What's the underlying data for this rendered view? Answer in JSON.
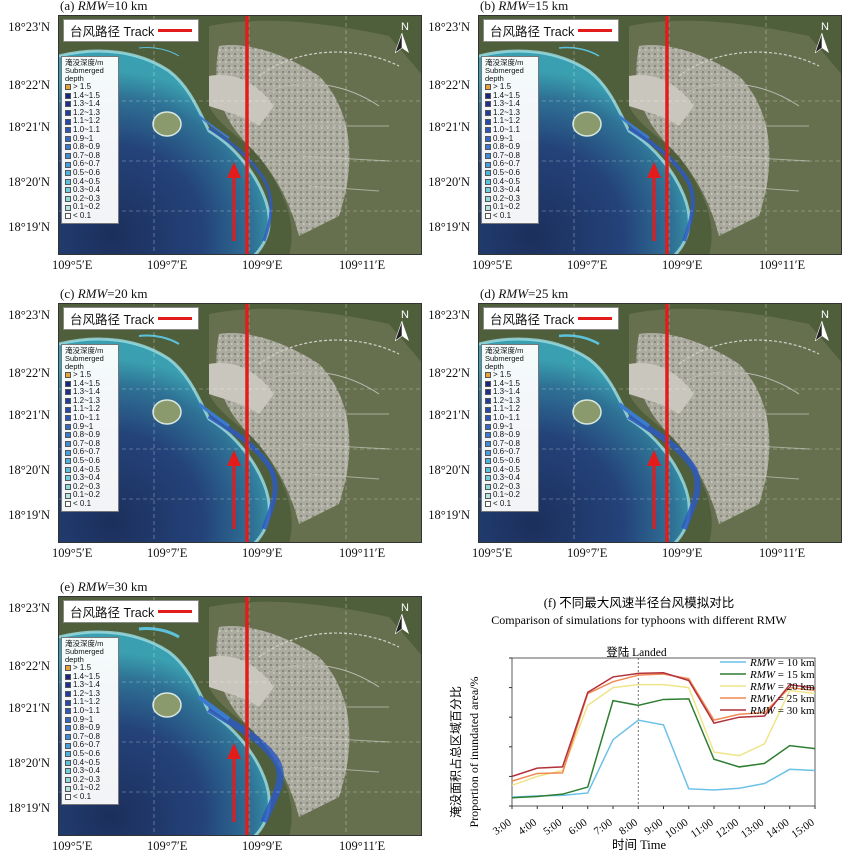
{
  "panels": [
    {
      "id": "a",
      "label_prefix": "(a)",
      "var": "RMW",
      "value": "=10 km"
    },
    {
      "id": "b",
      "label_prefix": "(b)",
      "var": "RMW",
      "value": "=15 km"
    },
    {
      "id": "c",
      "label_prefix": "(c)",
      "var": "RMW",
      "value": "=20 km"
    },
    {
      "id": "d",
      "label_prefix": "(d)",
      "var": "RMW",
      "value": "=25 km"
    },
    {
      "id": "e",
      "label_prefix": "(e)",
      "var": "RMW",
      "value": "=30 km"
    }
  ],
  "map": {
    "track_label": "台风路径  Track",
    "north_label": "N",
    "lat_labels": [
      "18°23′N",
      "18°22′N",
      "18°21′N",
      "18°20′N",
      "18°19′N"
    ],
    "lon_labels": [
      "109°5′E",
      "109°7′E",
      "109°9′E",
      "109°11′E"
    ],
    "colors": {
      "track": "#e31b1b",
      "sea_deep": "#1c2f5c",
      "sea_shallow": "#3a9fb0",
      "land": "#5a6a45",
      "urban": "#b7b5ad"
    }
  },
  "legend": {
    "title_cn": "淹没深度/m",
    "title_en": "Submerged depth",
    "items": [
      {
        "label": "> 1.5",
        "color": "#e8a23c"
      },
      {
        "label": "1.4~1.5",
        "color": "#1a237e"
      },
      {
        "label": "1.3~1.4",
        "color": "#1e2f8f"
      },
      {
        "label": "1.2~1.3",
        "color": "#223b9f"
      },
      {
        "label": "1.1~1.2",
        "color": "#2848ad"
      },
      {
        "label": "1.0~1.1",
        "color": "#2f58bb"
      },
      {
        "label": "0.9~1",
        "color": "#3569c6"
      },
      {
        "label": "0.8~0.9",
        "color": "#3a7bcf"
      },
      {
        "label": "0.7~0.8",
        "color": "#3e8ed5"
      },
      {
        "label": "0.6~0.7",
        "color": "#44a1d9"
      },
      {
        "label": "0.5~0.6",
        "color": "#4db3db"
      },
      {
        "label": "0.4~0.5",
        "color": "#5cc2db"
      },
      {
        "label": "0.3~0.4",
        "color": "#71cfdc"
      },
      {
        "label": "0.2~0.3",
        "color": "#8fdadf"
      },
      {
        "label": "0.1~0.2",
        "color": "#b5e6e6"
      },
      {
        "label": "< 0.1",
        "color": "#ffffff"
      }
    ]
  },
  "chart_data": {
    "type": "line",
    "title": "(f) 不同最大风速半径台风模拟对比",
    "subtitle": "Comparison of simulations for typhoons with different RMW",
    "xlabel": "时间 Time",
    "ylabel_cn": "淹没面积占总区域百分比",
    "ylabel_en": "Proportion of inundated area/%",
    "categories": [
      "3:00",
      "4:00",
      "5:00",
      "6:00",
      "7:00",
      "8:00",
      "9:00",
      "10:00",
      "11:00",
      "12:00",
      "13:00",
      "14:00",
      "15:00"
    ],
    "ylim": [
      0,
      2.5
    ],
    "yticks": [
      "0",
      "0.5",
      "1.0",
      "1.5",
      "2.0",
      "2.5"
    ],
    "annotation": {
      "label": "登陆  Landed",
      "x_index": 5
    },
    "series": [
      {
        "name": "= 10 km",
        "var": "RMW",
        "color": "#6cc1e8",
        "values": [
          0.15,
          0.17,
          0.18,
          0.22,
          1.12,
          1.45,
          1.37,
          0.29,
          0.27,
          0.3,
          0.38,
          0.62,
          0.6
        ]
      },
      {
        "name": "= 15 km",
        "var": "RMW",
        "color": "#2e7d32",
        "values": [
          0.14,
          0.16,
          0.2,
          0.32,
          1.78,
          1.7,
          1.8,
          1.81,
          0.79,
          0.66,
          0.72,
          1.02,
          0.97
        ]
      },
      {
        "name": "= 20 km",
        "var": "RMW",
        "color": "#eee58a",
        "values": [
          0.35,
          0.5,
          0.6,
          1.7,
          2.0,
          2.05,
          2.05,
          2.0,
          0.91,
          0.85,
          1.05,
          1.95,
          1.9
        ]
      },
      {
        "name": "= 25 km",
        "var": "RMW",
        "color": "#f08a55",
        "values": [
          0.42,
          0.55,
          0.56,
          1.9,
          2.1,
          2.21,
          2.23,
          2.15,
          1.45,
          1.55,
          1.58,
          2.0,
          1.95
        ]
      },
      {
        "name": "= 30 km",
        "var": "RMW",
        "color": "#b2313a",
        "values": [
          0.5,
          0.64,
          0.66,
          1.92,
          2.18,
          2.24,
          2.25,
          2.12,
          1.4,
          1.5,
          1.52,
          2.05,
          1.99
        ]
      }
    ]
  }
}
